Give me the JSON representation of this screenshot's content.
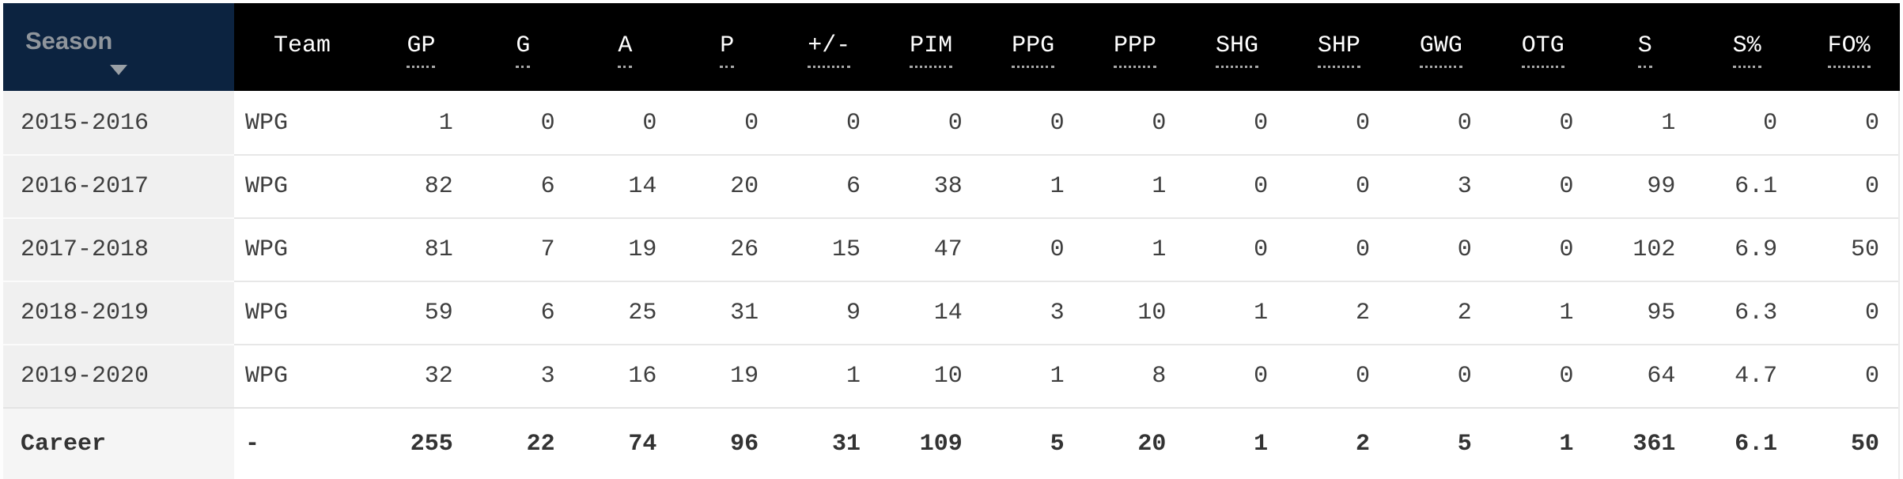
{
  "colors": {
    "header_bg": "#000000",
    "season_header_bg": "#0c2340",
    "season_header_text": "#8f959c",
    "header_text": "#ffffff",
    "dotted_underline": "#a8a8a8",
    "season_column_bg": "#f0f0f0",
    "career_season_cell_bg": "#f5f5f5",
    "row_bg": "#ffffff",
    "row_separator": "#e7e7e7",
    "cell_text": "#3e3e3e"
  },
  "sort": {
    "column": "Season",
    "direction": "descending"
  },
  "table": {
    "season_header": {
      "label": "Season",
      "sort_icon": "triangle-down-icon"
    },
    "columns": [
      {
        "key": "team",
        "label": "Team",
        "underlined": false
      },
      {
        "key": "gp",
        "label": "GP",
        "underlined": true
      },
      {
        "key": "g",
        "label": "G",
        "underlined": true
      },
      {
        "key": "a",
        "label": "A",
        "underlined": true
      },
      {
        "key": "p",
        "label": "P",
        "underlined": true
      },
      {
        "key": "plus-minus",
        "label": "+/-",
        "underlined": true
      },
      {
        "key": "pim",
        "label": "PIM",
        "underlined": true
      },
      {
        "key": "ppg",
        "label": "PPG",
        "underlined": true
      },
      {
        "key": "ppp",
        "label": "PPP",
        "underlined": true
      },
      {
        "key": "shg",
        "label": "SHG",
        "underlined": true
      },
      {
        "key": "shp",
        "label": "SHP",
        "underlined": true
      },
      {
        "key": "gwg",
        "label": "GWG",
        "underlined": true
      },
      {
        "key": "otg",
        "label": "OTG",
        "underlined": true
      },
      {
        "key": "s",
        "label": "S",
        "underlined": true
      },
      {
        "key": "s-pct",
        "label": "S%",
        "underlined": true
      },
      {
        "key": "fo-pct",
        "label": "FO%",
        "underlined": true
      }
    ],
    "rows": [
      {
        "season": "2015-2016",
        "team": "WPG",
        "stats": [
          "1",
          "0",
          "0",
          "0",
          "0",
          "0",
          "0",
          "0",
          "0",
          "0",
          "0",
          "0",
          "1",
          "0",
          "0"
        ]
      },
      {
        "season": "2016-2017",
        "team": "WPG",
        "stats": [
          "82",
          "6",
          "14",
          "20",
          "6",
          "38",
          "1",
          "1",
          "0",
          "0",
          "3",
          "0",
          "99",
          "6.1",
          "0"
        ]
      },
      {
        "season": "2017-2018",
        "team": "WPG",
        "stats": [
          "81",
          "7",
          "19",
          "26",
          "15",
          "47",
          "0",
          "1",
          "0",
          "0",
          "0",
          "0",
          "102",
          "6.9",
          "50"
        ]
      },
      {
        "season": "2018-2019",
        "team": "WPG",
        "stats": [
          "59",
          "6",
          "25",
          "31",
          "9",
          "14",
          "3",
          "10",
          "1",
          "2",
          "2",
          "1",
          "95",
          "6.3",
          "0"
        ]
      },
      {
        "season": "2019-2020",
        "team": "WPG",
        "stats": [
          "32",
          "3",
          "16",
          "19",
          "1",
          "10",
          "1",
          "8",
          "0",
          "0",
          "0",
          "0",
          "64",
          "4.7",
          "0"
        ]
      }
    ],
    "career_row": {
      "season": "Career",
      "team": "-",
      "stats": [
        "255",
        "22",
        "74",
        "96",
        "31",
        "109",
        "5",
        "20",
        "1",
        "2",
        "5",
        "1",
        "361",
        "6.1",
        "50"
      ]
    }
  }
}
